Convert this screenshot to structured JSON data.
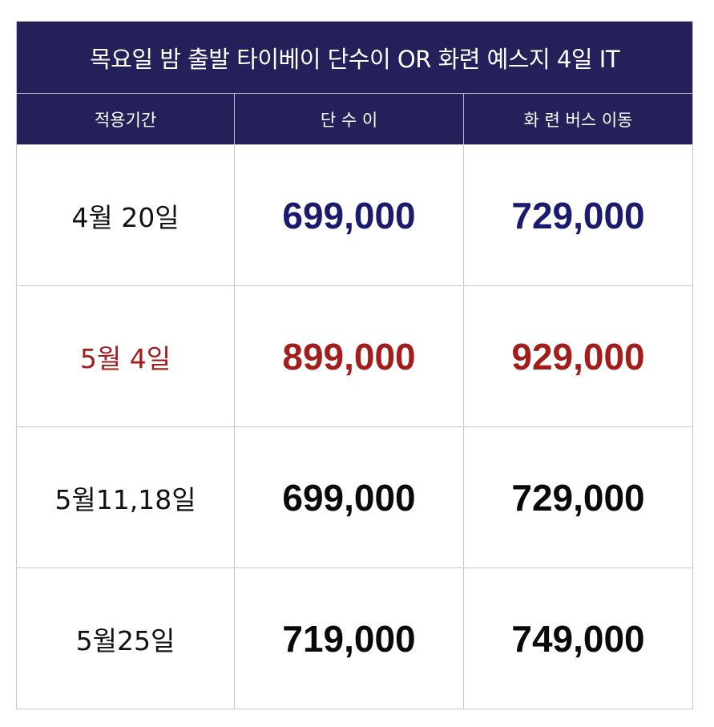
{
  "title": "목요일 밤 출발 타이베이 단수이 OR 화련 예스지 4일 IT",
  "headers": [
    "적용기간",
    "단 수 이",
    "화 련 버스 이동"
  ],
  "rows": [
    {
      "date": "4월 20일",
      "danshui": "699,000",
      "hualien": "729,000",
      "date_color": "#111111",
      "price_color": "#1a1a6e"
    },
    {
      "date": "5월 4일",
      "danshui": "899,000",
      "hualien": "929,000",
      "date_color": "#a31d1d",
      "price_color": "#a31d1d"
    },
    {
      "date": "5월11,18일",
      "danshui": "699,000",
      "hualien": "729,000",
      "date_color": "#111111",
      "price_color": "#0a0a0a"
    },
    {
      "date": "5월25일",
      "danshui": "719,000",
      "hualien": "749,000",
      "date_color": "#111111",
      "price_color": "#0a0a0a"
    }
  ]
}
